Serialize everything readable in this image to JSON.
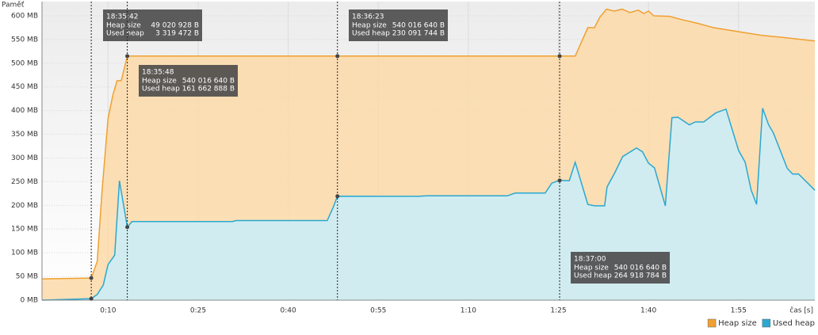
{
  "chart_data": {
    "type": "area",
    "y_label": "Paměť",
    "x_label": "čas [s]",
    "xlim": [
      -1,
      127.7
    ],
    "ylim": [
      0,
      630
    ],
    "xticks": [
      {
        "value": 10,
        "label": "0:10"
      },
      {
        "value": 25,
        "label": "0:25"
      },
      {
        "value": 40,
        "label": "0:40"
      },
      {
        "value": 55,
        "label": "0:55"
      },
      {
        "value": 70,
        "label": "1:10"
      },
      {
        "value": 85,
        "label": "1:25"
      },
      {
        "value": 100,
        "label": "1:40"
      },
      {
        "value": 115,
        "label": "1:55"
      }
    ],
    "yticks": [
      {
        "value": 0,
        "label": "0 MB"
      },
      {
        "value": 50,
        "label": "50 MB"
      },
      {
        "value": 100,
        "label": "100 MB"
      },
      {
        "value": 150,
        "label": "150 MB"
      },
      {
        "value": 200,
        "label": "200 MB"
      },
      {
        "value": 250,
        "label": "250 MB"
      },
      {
        "value": 300,
        "label": "300 MB"
      },
      {
        "value": 350,
        "label": "350 MB"
      },
      {
        "value": 400,
        "label": "400 MB"
      },
      {
        "value": 450,
        "label": "450 MB"
      },
      {
        "value": 500,
        "label": "500 MB"
      },
      {
        "value": 550,
        "label": "550 MB"
      },
      {
        "value": 600,
        "label": "600 MB"
      }
    ],
    "grid": true,
    "legend": "bottom-right",
    "series": [
      {
        "name": "Heap size",
        "color": "#f0a030",
        "fill": "#fbd9a8",
        "x": [
          -1,
          7.2,
          8.2,
          9.0,
          10,
          10.8,
          11.5,
          12.2,
          13.2,
          48.2,
          85.2,
          87.8,
          89.9,
          91,
          91.9,
          93,
          94.3,
          95.6,
          96.9,
          98.3,
          99.2,
          100,
          100.9,
          103.5,
          105.5,
          108.2,
          110.8,
          114.8,
          118.7,
          122.7,
          127.7
        ],
        "values": [
          45,
          46.7,
          82,
          232,
          383,
          433,
          463,
          463,
          515,
          515,
          515,
          515,
          575,
          575,
          597,
          614,
          610,
          614,
          607,
          612,
          605,
          610,
          600,
          599,
          592,
          584,
          575,
          567,
          559,
          554,
          547
        ]
      },
      {
        "name": "Used heap",
        "color": "#2aa8d0",
        "fill": "#c9eefa",
        "x": [
          -1,
          7.2,
          8.2,
          9.2,
          10,
          11.1,
          11.9,
          13.2,
          14,
          30.7,
          31.3,
          46.5,
          47.5,
          48.2,
          61.7,
          63,
          76.5,
          77.8,
          82.8,
          83.9,
          85.2,
          86.8,
          87.8,
          89.9,
          91,
          92.7,
          93.1,
          94.4,
          95.7,
          98,
          99,
          100,
          101,
          102.8,
          103.9,
          104.9,
          106.8,
          107.8,
          109.2,
          111.2,
          112.9,
          115,
          116.1,
          117.1,
          118,
          119,
          120,
          120.8,
          123.1,
          124,
          125,
          126.6,
          127.7
        ],
        "values": [
          0,
          3.2,
          12,
          32,
          75,
          95,
          252,
          154.2,
          166,
          166,
          168,
          168,
          196,
          219.4,
          219,
          220,
          220,
          226,
          226,
          247,
          252.6,
          252,
          291,
          202,
          199,
          199,
          239,
          269,
          303,
          321,
          313,
          289,
          279,
          199,
          385,
          386,
          370,
          376,
          376,
          395,
          403,
          316,
          291,
          232,
          202,
          405,
          370,
          353,
          278,
          266,
          266,
          246,
          232
        ]
      }
    ],
    "annotations": [
      {
        "x": 7.2,
        "time": "18:35:42",
        "rows": [
          [
            "Heap size",
            "49 020 928 B"
          ],
          [
            "Used heap",
            "3 319 472 B"
          ]
        ]
      },
      {
        "x": 13.2,
        "time": "18:35:48",
        "rows": [
          [
            "Heap size",
            "540 016 640 B"
          ],
          [
            "Used heap",
            "161 662 888 B"
          ]
        ]
      },
      {
        "x": 48.2,
        "time": "18:36:23",
        "rows": [
          [
            "Heap size",
            "540 016 640 B"
          ],
          [
            "Used heap",
            "230 091 744 B"
          ]
        ]
      },
      {
        "x": 85.2,
        "time": "18:37:00",
        "rows": [
          [
            "Heap size",
            "540 016 640 B"
          ],
          [
            "Used heap",
            "264 918 784 B"
          ]
        ]
      }
    ]
  }
}
